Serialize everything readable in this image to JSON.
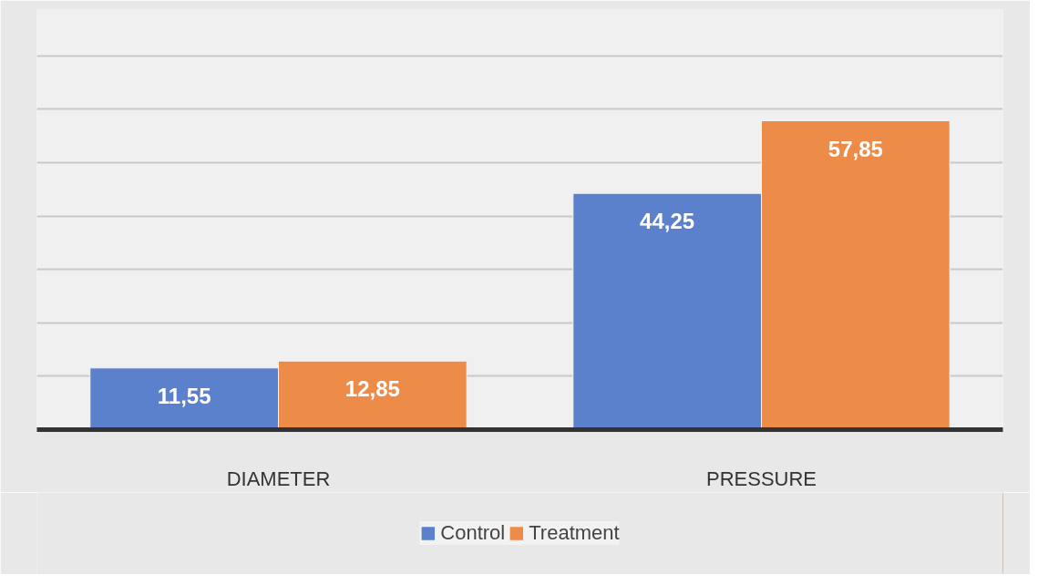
{
  "chart_data": {
    "type": "bar",
    "categories": [
      "DIAMETER",
      "PRESSURE"
    ],
    "series": [
      {
        "name": "Control",
        "color": "#5b80cc",
        "values": [
          11.55,
          44.25
        ],
        "value_labels": [
          "11,55",
          "44,25"
        ]
      },
      {
        "name": "Treatment",
        "color": "#ed8b48",
        "values": [
          12.85,
          57.85
        ],
        "value_labels": [
          "12,85",
          "57,85"
        ]
      }
    ],
    "grid": "y",
    "legend": "bottom",
    "tick_labels": "x"
  }
}
